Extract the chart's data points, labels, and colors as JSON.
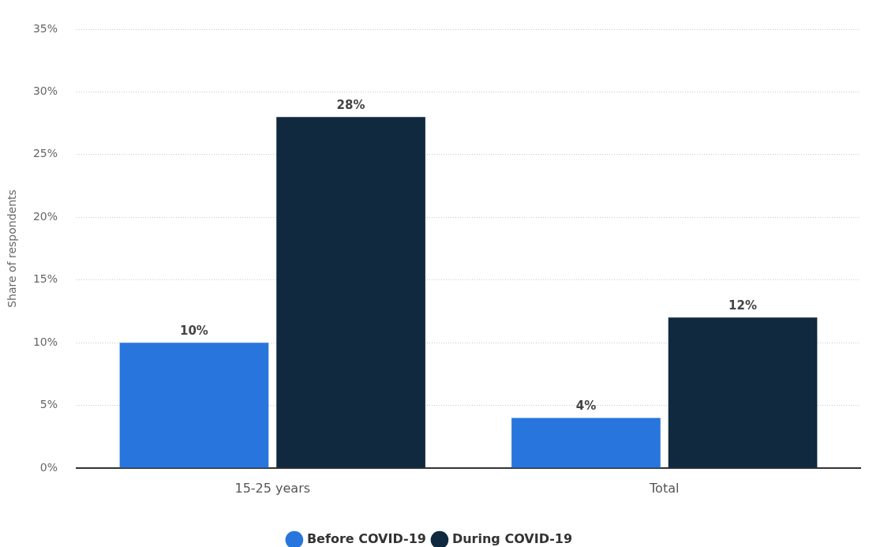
{
  "chart_data": {
    "type": "bar",
    "ylabel": "Share of respondents",
    "categories": [
      "15-25 years",
      "Total"
    ],
    "series": [
      {
        "name": "Before COVID-19",
        "color": "#2876dd",
        "values": [
          10,
          4
        ],
        "value_labels": [
          "10%",
          "4%"
        ]
      },
      {
        "name": "During COVID-19",
        "color": "#10293f",
        "values": [
          28,
          12
        ],
        "value_labels": [
          "28%",
          "12%"
        ]
      }
    ],
    "ylim": [
      0,
      35
    ],
    "yticks": [
      {
        "value": 0,
        "label": "0%"
      },
      {
        "value": 5,
        "label": "5%"
      },
      {
        "value": 10,
        "label": "10%"
      },
      {
        "value": 15,
        "label": "15%"
      },
      {
        "value": 20,
        "label": "20%"
      },
      {
        "value": 25,
        "label": "25%"
      },
      {
        "value": 30,
        "label": "30%"
      },
      {
        "value": 35,
        "label": "35%"
      }
    ],
    "grid": "y",
    "legend": "bottom"
  }
}
